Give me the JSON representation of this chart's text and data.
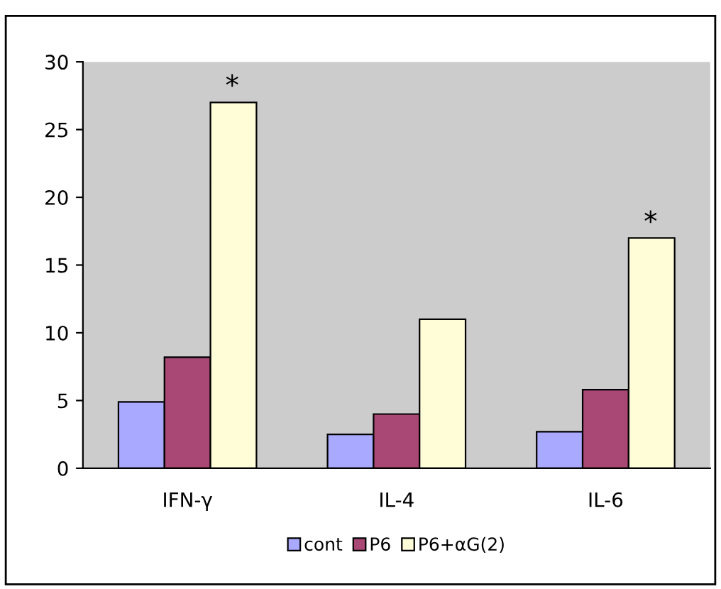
{
  "chart_data": {
    "type": "bar",
    "categories": [
      "IFN-γ",
      "IL-4",
      "IL-6"
    ],
    "series": [
      {
        "name": "cont",
        "color": "#a9a9ff",
        "values": [
          4.9,
          2.5,
          2.7
        ]
      },
      {
        "name": "P6",
        "color": "#a94874",
        "values": [
          8.2,
          4.0,
          5.8
        ]
      },
      {
        "name": "P6+αG(2)",
        "color": "#fffcd8",
        "values": [
          27.0,
          11.0,
          17.0
        ]
      }
    ],
    "ylim": [
      0,
      30
    ],
    "yticks": [
      0,
      5,
      10,
      15,
      20,
      25,
      30
    ],
    "grid": false,
    "legend": "bottom",
    "annotations": [
      "*",
      "*"
    ]
  }
}
